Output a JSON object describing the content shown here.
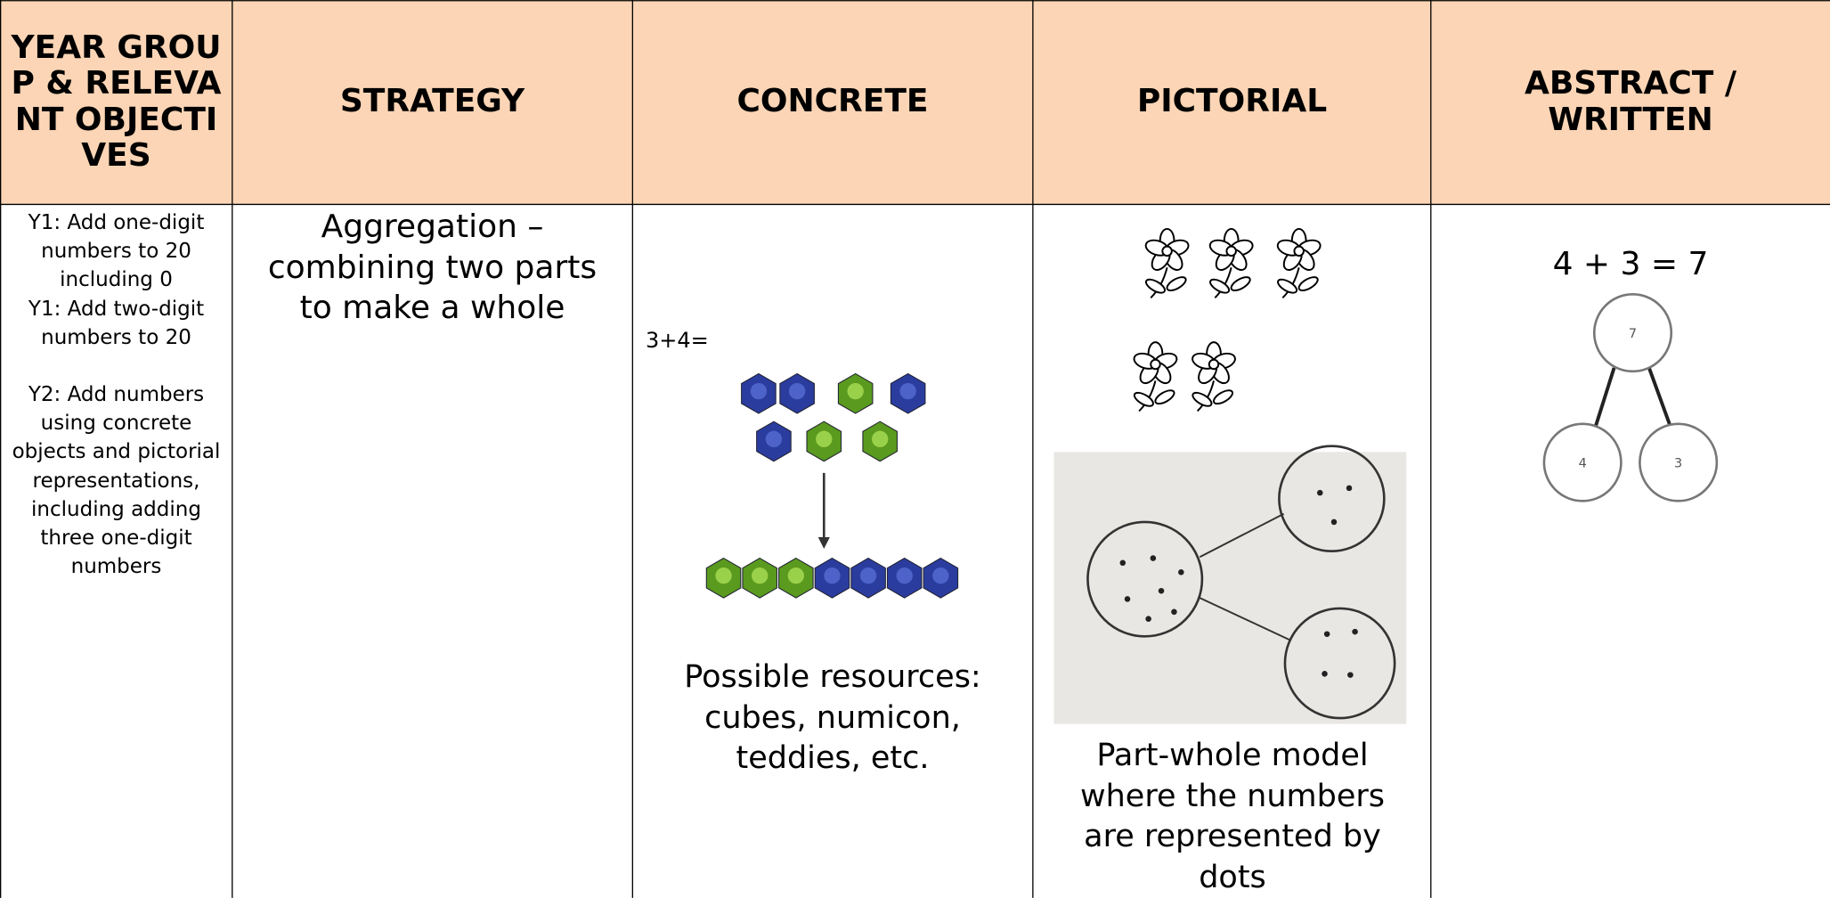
{
  "table": {
    "header": [
      "YEAR GROUP & RELEVANT OBJECTIVES",
      "STRATEGY",
      "CONCRETE",
      "PICTORIAL",
      "ABSTRACT / WRITTEN"
    ],
    "row": {
      "objectives": [
        "Y1: Add one-digit numbers to 20 including 0",
        "Y1: Add two-digit numbers to 20",
        "Y2: Add numbers using concrete objects and pictorial representations, including adding three one-digit numbers"
      ],
      "strategy": "Aggregation – combining two parts to make a whole",
      "concrete": {
        "sum": "3+4=",
        "caption": "Possible resources: cubes, numicon, teddies, etc."
      },
      "pictorial": {
        "caption": "Part-whole model where the numbers are represented by dots"
      },
      "abstract": {
        "equation": "4 + 3 = 7",
        "whole": "7",
        "parts": [
          "4",
          "3"
        ]
      }
    }
  }
}
